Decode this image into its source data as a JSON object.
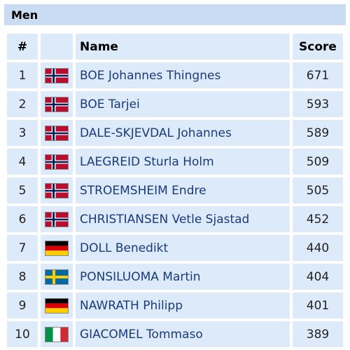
{
  "section": {
    "title": "Men"
  },
  "table": {
    "headers": {
      "rank": "#",
      "flag": "",
      "name": "Name",
      "score": "Score"
    },
    "rows": [
      {
        "rank": "1",
        "country": "norway",
        "name": "BOE Johannes Thingnes",
        "score": "671"
      },
      {
        "rank": "2",
        "country": "norway",
        "name": "BOE Tarjei",
        "score": "593"
      },
      {
        "rank": "3",
        "country": "norway",
        "name": "DALE-SKJEVDAL Johannes",
        "score": "589"
      },
      {
        "rank": "4",
        "country": "norway",
        "name": "LAEGREID Sturla Holm",
        "score": "509"
      },
      {
        "rank": "5",
        "country": "norway",
        "name": "STROEMSHEIM Endre",
        "score": "505"
      },
      {
        "rank": "6",
        "country": "norway",
        "name": "CHRISTIANSEN Vetle Sjastad",
        "score": "452"
      },
      {
        "rank": "7",
        "country": "germany",
        "name": "DOLL Benedikt",
        "score": "440"
      },
      {
        "rank": "8",
        "country": "sweden",
        "name": "PONSILUOMA Martin",
        "score": "404"
      },
      {
        "rank": "9",
        "country": "germany",
        "name": "NAWRATH Philipp",
        "score": "401"
      },
      {
        "rank": "10",
        "country": "italy",
        "name": "GIACOMEL Tommaso",
        "score": "389"
      }
    ]
  },
  "colors": {
    "header_bg": "#c9dcf2",
    "cell_bg": "#ddeafa",
    "name_link": "#1a3a7a"
  }
}
